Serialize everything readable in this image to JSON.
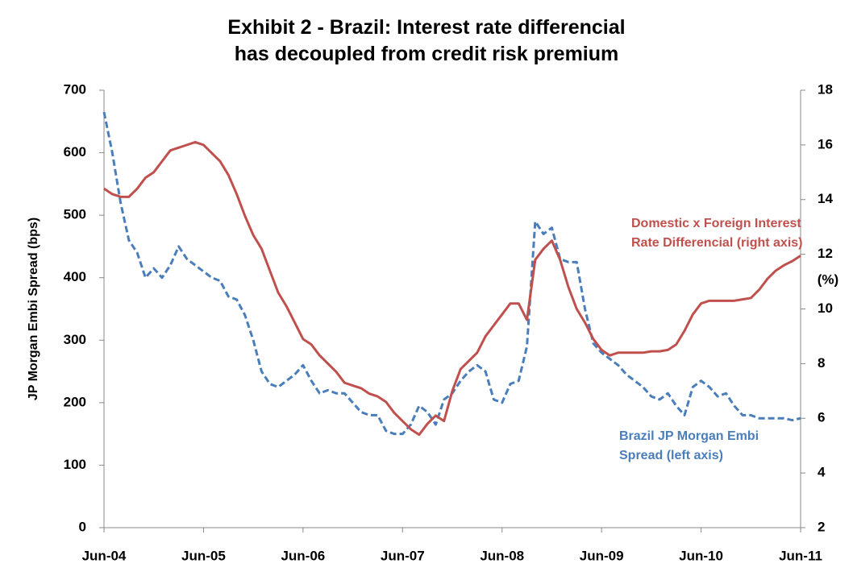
{
  "chart_data": {
    "type": "line",
    "title": "Exhibit 2 - Brazil: Interest rate differencial\nhas decoupled from credit risk premium",
    "ylabel": "JP Morgan Embi Spread (bps)",
    "y2label": "(%)",
    "categories": [
      "Jun-04",
      null,
      null,
      null,
      null,
      null,
      null,
      null,
      null,
      null,
      null,
      null,
      "Jun-05",
      null,
      null,
      null,
      null,
      null,
      null,
      null,
      null,
      null,
      null,
      null,
      "Jun-06",
      null,
      null,
      null,
      null,
      null,
      null,
      null,
      null,
      null,
      null,
      null,
      "Jun-07",
      null,
      null,
      null,
      null,
      null,
      null,
      null,
      null,
      null,
      null,
      null,
      "Jun-08",
      null,
      null,
      null,
      null,
      null,
      null,
      null,
      null,
      null,
      null,
      null,
      "Jun-09",
      null,
      null,
      null,
      null,
      null,
      null,
      null,
      null,
      null,
      null,
      null,
      "Jun-10",
      null,
      null,
      null,
      null,
      null,
      null,
      null,
      null,
      null,
      null,
      null,
      "Jun-11"
    ],
    "series": [
      {
        "name": "Brazil JP Morgan Embi\nSpread (left axis)",
        "color": "#4a7ebb",
        "dashed": true,
        "axis": "y",
        "values": [
          665,
          600,
          520,
          460,
          440,
          400,
          415,
          400,
          420,
          450,
          430,
          420,
          410,
          400,
          395,
          370,
          365,
          340,
          300,
          250,
          230,
          225,
          235,
          245,
          260,
          235,
          215,
          220,
          215,
          215,
          200,
          185,
          180,
          180,
          155,
          150,
          150,
          165,
          195,
          185,
          165,
          205,
          215,
          235,
          250,
          260,
          250,
          205,
          200,
          230,
          235,
          290,
          490,
          470,
          480,
          430,
          425,
          425,
          350,
          295,
          280,
          270,
          260,
          245,
          235,
          225,
          210,
          205,
          215,
          195,
          180,
          225,
          235,
          225,
          210,
          215,
          195,
          180,
          180,
          175,
          175,
          175,
          175,
          172,
          175
        ]
      },
      {
        "name": "Domestic x Foreign Interest\nRate Differencial (right axis)",
        "color": "#c0504d",
        "dashed": false,
        "axis": "y2",
        "values": [
          14.4,
          14.2,
          14.1,
          14.1,
          14.4,
          14.8,
          15.0,
          15.4,
          15.8,
          15.9,
          16.0,
          16.1,
          16.0,
          15.7,
          15.4,
          14.9,
          14.2,
          13.4,
          12.7,
          12.2,
          11.4,
          10.6,
          10.1,
          9.5,
          8.9,
          8.7,
          8.3,
          8.0,
          7.7,
          7.3,
          7.2,
          7.1,
          6.9,
          6.8,
          6.6,
          6.2,
          5.9,
          5.6,
          5.4,
          5.8,
          6.1,
          5.9,
          7.0,
          7.8,
          8.1,
          8.4,
          9.0,
          9.4,
          9.8,
          10.2,
          10.2,
          9.6,
          11.8,
          12.2,
          12.5,
          11.8,
          10.8,
          10.0,
          9.5,
          8.9,
          8.5,
          8.3,
          8.4,
          8.4,
          8.4,
          8.4,
          8.45,
          8.45,
          8.5,
          8.7,
          9.2,
          9.8,
          10.2,
          10.3,
          10.3,
          10.3,
          10.3,
          10.35,
          10.4,
          10.7,
          11.1,
          11.4,
          11.6,
          11.75,
          11.95
        ]
      }
    ],
    "ylim": [
      0,
      700
    ],
    "yticks": [
      0,
      100,
      200,
      300,
      400,
      500,
      600,
      700
    ],
    "y2lim": [
      2,
      18
    ],
    "y2ticks": [
      2,
      4,
      6,
      8,
      10,
      12,
      14,
      16,
      18
    ],
    "grid": false
  }
}
